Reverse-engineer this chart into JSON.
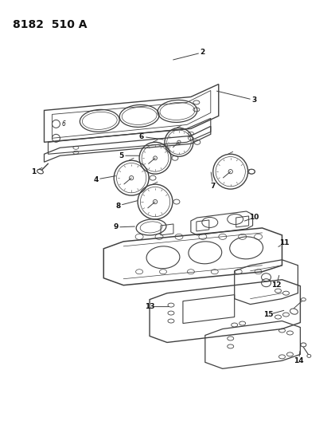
{
  "title": "8182  510 A",
  "background_color": "#ffffff",
  "line_color": "#404040",
  "text_color": "#111111",
  "figsize": [
    4.11,
    5.33
  ],
  "dpi": 100
}
